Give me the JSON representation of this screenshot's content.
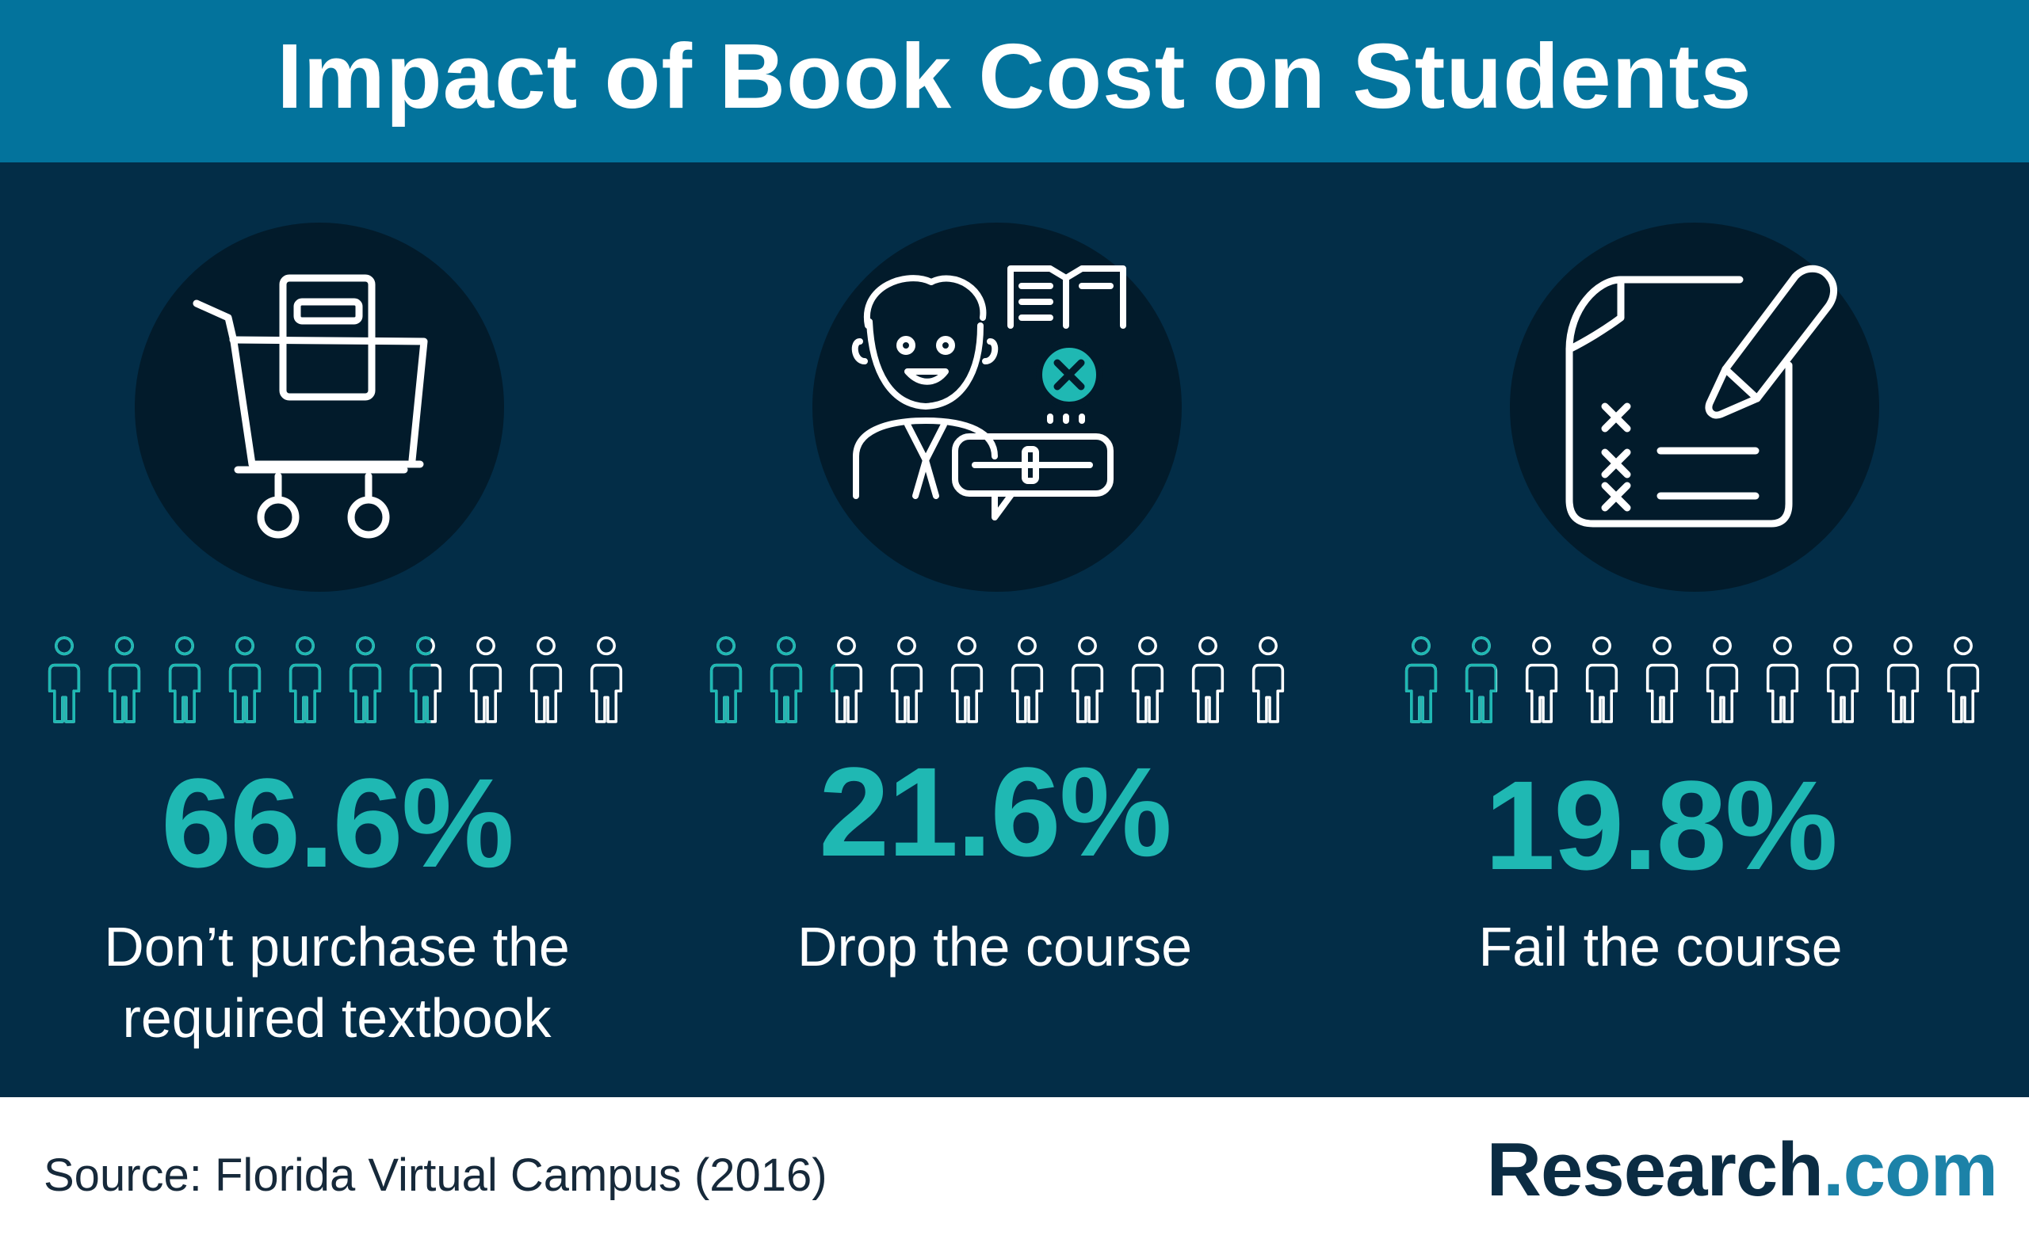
{
  "header": {
    "title": "Impact of Book Cost on Students"
  },
  "stats": [
    {
      "percent_label": "66.6%",
      "value": 66.6,
      "desc_line1": "Don’t purchase the",
      "desc_line2": "required textbook",
      "icon": "shopping-cart-book-icon"
    },
    {
      "percent_label": "21.6%",
      "value": 21.6,
      "desc_line1": "Drop the course",
      "desc_line2": "",
      "icon": "student-drop-course-icon"
    },
    {
      "percent_label": "19.8%",
      "value": 19.8,
      "desc_line1": "Fail the course",
      "desc_line2": "",
      "icon": "failed-test-paper-icon"
    }
  ],
  "colors": {
    "accent": "#1fb8b3",
    "header_bg": "#03739c",
    "panel_bg": "#032d47",
    "circle_bg": "#021b2b"
  },
  "footer": {
    "source": "Source: Florida Virtual Campus (2016)",
    "logo_main": "Research",
    "logo_suffix": ".com"
  }
}
